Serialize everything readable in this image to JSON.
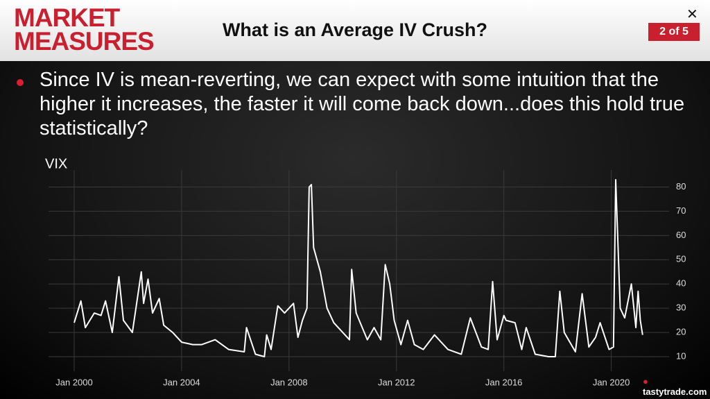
{
  "header": {
    "logo_line1": "MARKET",
    "logo_line2": "MEASURES",
    "title": "What is an Average IV Crush?",
    "page": "2 of 5",
    "close": "✕"
  },
  "bullet": "Since IV is mean-reverting, we can expect with some intuition that the higher it increases, the faster it will come back down...does this hold true statistically?",
  "footer": "tastytrade.com",
  "chart_data": {
    "type": "line",
    "title": "VIX",
    "color": "#ffffff",
    "grid": true,
    "x": [
      "2000-01",
      "2000-04",
      "2000-06",
      "2000-10",
      "2001-01",
      "2001-03",
      "2001-06",
      "2001-09",
      "2001-11",
      "2002-03",
      "2002-07",
      "2002-08",
      "2002-10",
      "2002-12",
      "2003-03",
      "2003-05",
      "2003-09",
      "2004-01",
      "2004-06",
      "2004-10",
      "2005-04",
      "2005-10",
      "2006-05",
      "2006-06",
      "2006-10",
      "2007-02",
      "2007-03",
      "2007-05",
      "2007-08",
      "2007-11",
      "2008-01",
      "2008-03",
      "2008-05",
      "2008-07",
      "2008-09",
      "2008-10",
      "2008-11",
      "2008-12",
      "2009-03",
      "2009-06",
      "2009-09",
      "2010-01",
      "2010-04",
      "2010-05",
      "2010-07",
      "2010-12",
      "2011-03",
      "2011-06",
      "2011-08",
      "2011-10",
      "2011-12",
      "2012-03",
      "2012-06",
      "2012-09",
      "2013-01",
      "2013-06",
      "2013-12",
      "2014-06",
      "2014-10",
      "2015-03",
      "2015-06",
      "2015-08",
      "2015-10",
      "2016-01",
      "2016-02",
      "2016-06",
      "2016-09",
      "2016-11",
      "2017-03",
      "2017-09",
      "2017-12",
      "2018-02",
      "2018-04",
      "2018-09",
      "2018-12",
      "2019-03",
      "2019-06",
      "2019-08",
      "2019-12",
      "2020-02",
      "2020-03",
      "2020-05",
      "2020-07",
      "2020-10",
      "2020-12",
      "2021-01",
      "2021-02",
      "2021-03"
    ],
    "values": [
      24,
      33,
      22,
      28,
      27,
      33,
      20,
      43,
      25,
      20,
      45,
      32,
      42,
      28,
      34,
      23,
      20,
      16,
      15,
      15,
      17,
      13,
      12,
      22,
      11,
      10,
      19,
      13,
      31,
      28,
      30,
      32,
      18,
      25,
      30,
      80,
      81,
      55,
      45,
      30,
      24,
      20,
      17,
      46,
      28,
      17,
      22,
      17,
      48,
      40,
      25,
      15,
      25,
      15,
      13,
      19,
      13,
      11,
      26,
      14,
      13,
      41,
      17,
      27,
      25,
      24,
      13,
      22,
      11,
      10,
      10,
      37,
      20,
      12,
      36,
      14,
      18,
      24,
      13,
      14,
      83,
      30,
      26,
      40,
      22,
      37,
      25,
      19
    ],
    "xlim": [
      "2000-01",
      "2021-04"
    ],
    "xticks": [
      {
        "value": "2000-01",
        "label": "Jan 2000"
      },
      {
        "value": "2004-01",
        "label": "Jan 2004"
      },
      {
        "value": "2008-01",
        "label": "Jan 2008"
      },
      {
        "value": "2012-01",
        "label": "Jan 2012"
      },
      {
        "value": "2016-01",
        "label": "Jan 2016"
      },
      {
        "value": "2020-01",
        "label": "Jan 2020"
      }
    ],
    "ylim": [
      4,
      87
    ],
    "yticks": [
      10,
      20,
      30,
      40,
      50,
      60,
      70,
      80
    ]
  }
}
